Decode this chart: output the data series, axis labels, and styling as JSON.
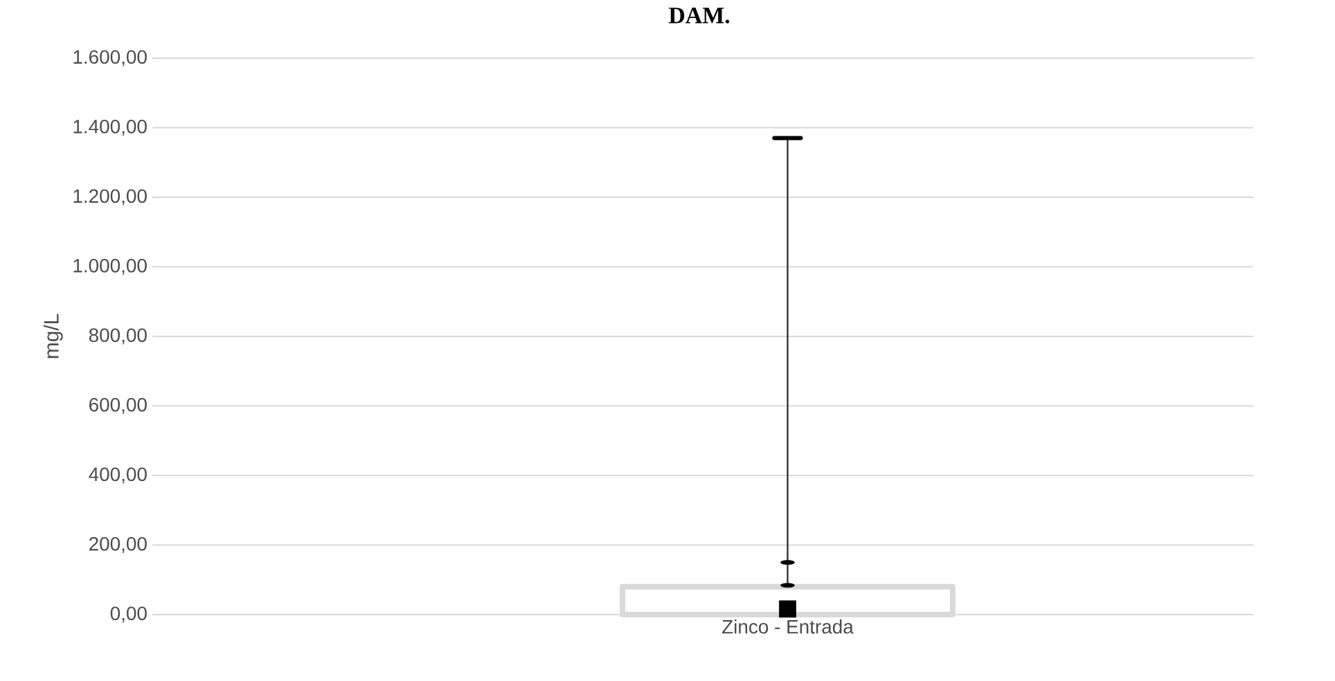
{
  "chart_data": {
    "type": "box",
    "title": "DAM.",
    "ylabel": "mg/L",
    "categories": [
      "Zinco - Entrada"
    ],
    "boxes": [
      {
        "low": 0,
        "q1": 0,
        "median": 16,
        "q3": 80,
        "high": 1370,
        "outliers": [
          84,
          150
        ]
      }
    ],
    "color": "#d9d9d9",
    "ylim": [
      0,
      1600
    ],
    "yticks": [
      {
        "value": 0,
        "label": "0,00"
      },
      {
        "value": 200,
        "label": "200,00"
      },
      {
        "value": 400,
        "label": "400,00"
      },
      {
        "value": 600,
        "label": "600,00"
      },
      {
        "value": 800,
        "label": "800,00"
      },
      {
        "value": 1000,
        "label": "1.000,00"
      },
      {
        "value": 1200,
        "label": "1.200,00"
      },
      {
        "value": 1400,
        "label": "1.400,00"
      },
      {
        "value": 1600,
        "label": "1.600,00"
      }
    ],
    "grid": "y"
  }
}
